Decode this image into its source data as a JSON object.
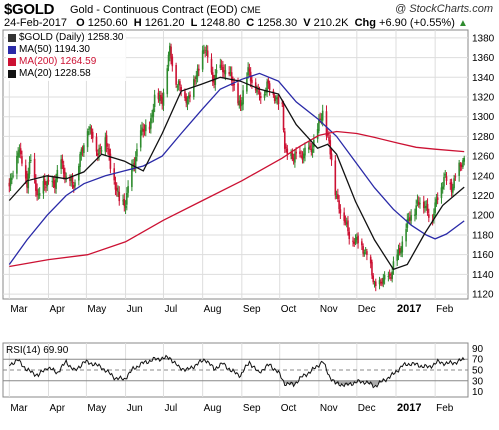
{
  "header": {
    "symbol": "$GOLD",
    "description": "Gold - Continuous Contract (EOD)",
    "exchange": "CME",
    "watermark": "@ StockCharts.com",
    "date": "24-Feb-2017",
    "open_label": "O",
    "open": "1250.60",
    "high_label": "H",
    "high": "1261.20",
    "low_label": "L",
    "low": "1248.80",
    "close_label": "C",
    "close": "1258.30",
    "volume_label": "V",
    "volume": "210.2K",
    "change_label": "Chg",
    "change": "+6.90 (+0.55%)",
    "change_arrow": "▲"
  },
  "legend": {
    "price": "$GOLD (Daily) 1258.30",
    "ma50": "MA(50) 1194.30",
    "ma200": "MA(200) 1264.59",
    "ma20": "MA(20) 1228.58"
  },
  "rsi_label": "RSI(14) 69.90",
  "colors": {
    "up": "#2e8b2e",
    "down": "#cc1133",
    "ma50": "#2a2aa8",
    "ma200": "#cc1133",
    "ma20": "#111111",
    "grid": "#dddddd",
    "rsi_fill": "#999999"
  },
  "chart_data": [
    {
      "type": "candlestick",
      "title": "$GOLD (Daily) 1258.30",
      "x_ticks": [
        "Mar",
        "Apr",
        "May",
        "Jun",
        "Jul",
        "Aug",
        "Sep",
        "Oct",
        "Nov",
        "Dec",
        "2017",
        "Feb"
      ],
      "x_tick_bold": "2017",
      "y_ticks": [
        1120,
        1140,
        1160,
        1180,
        1200,
        1220,
        1240,
        1260,
        1280,
        1300,
        1320,
        1340,
        1360,
        1380
      ],
      "ylim": [
        1115,
        1388
      ],
      "grid": true,
      "legend": "top-left",
      "close_points": [
        [
          "2016-03-01",
          1232
        ],
        [
          "2016-03-08",
          1264
        ],
        [
          "2016-03-11",
          1258
        ],
        [
          "2016-03-15",
          1232
        ],
        [
          "2016-03-18",
          1255
        ],
        [
          "2016-03-24",
          1219
        ],
        [
          "2016-03-31",
          1235
        ],
        [
          "2016-04-06",
          1229
        ],
        [
          "2016-04-11",
          1258
        ],
        [
          "2016-04-15",
          1234
        ],
        [
          "2016-04-22",
          1235
        ],
        [
          "2016-04-28",
          1267
        ],
        [
          "2016-05-02",
          1292
        ],
        [
          "2016-05-10",
          1265
        ],
        [
          "2016-05-16",
          1277
        ],
        [
          "2016-05-20",
          1252
        ],
        [
          "2016-05-27",
          1212
        ],
        [
          "2016-06-01",
          1215
        ],
        [
          "2016-06-06",
          1244
        ],
        [
          "2016-06-13",
          1283
        ],
        [
          "2016-06-20",
          1290
        ],
        [
          "2016-06-24",
          1318
        ],
        [
          "2016-06-30",
          1320
        ],
        [
          "2016-07-06",
          1366
        ],
        [
          "2016-07-12",
          1333
        ],
        [
          "2016-07-20",
          1318
        ],
        [
          "2016-07-27",
          1341
        ],
        [
          "2016-08-02",
          1370
        ],
        [
          "2016-08-09",
          1339
        ],
        [
          "2016-08-17",
          1350
        ],
        [
          "2016-08-23",
          1339
        ],
        [
          "2016-08-31",
          1311
        ],
        [
          "2016-09-06",
          1349
        ],
        [
          "2016-09-14",
          1321
        ],
        [
          "2016-09-21",
          1331
        ],
        [
          "2016-09-28",
          1321
        ],
        [
          "2016-10-03",
          1308
        ],
        [
          "2016-10-05",
          1268
        ],
        [
          "2016-10-12",
          1256
        ],
        [
          "2016-10-18",
          1262
        ],
        [
          "2016-10-25",
          1265
        ],
        [
          "2016-11-01",
          1290
        ],
        [
          "2016-11-04",
          1304
        ],
        [
          "2016-11-09",
          1274
        ],
        [
          "2016-11-10",
          1264
        ],
        [
          "2016-11-14",
          1224
        ],
        [
          "2016-11-18",
          1207
        ],
        [
          "2016-11-24",
          1183
        ],
        [
          "2016-11-30",
          1173
        ],
        [
          "2016-12-05",
          1170
        ],
        [
          "2016-12-09",
          1161
        ],
        [
          "2016-12-15",
          1129
        ],
        [
          "2016-12-21",
          1131
        ],
        [
          "2016-12-28",
          1141
        ],
        [
          "2017-01-03",
          1161
        ],
        [
          "2017-01-09",
          1186
        ],
        [
          "2017-01-13",
          1200
        ],
        [
          "2017-01-18",
          1212
        ],
        [
          "2017-01-24",
          1211
        ],
        [
          "2017-01-30",
          1195
        ],
        [
          "2017-02-03",
          1221
        ],
        [
          "2017-02-08",
          1236
        ],
        [
          "2017-02-14",
          1230
        ],
        [
          "2017-02-17",
          1238
        ],
        [
          "2017-02-24",
          1258.3
        ]
      ],
      "series": [
        {
          "name": "MA(50)",
          "points": [
            [
              "2016-03-01",
              1150
            ],
            [
              "2016-03-15",
              1175
            ],
            [
              "2016-03-31",
              1200
            ],
            [
              "2016-04-15",
              1220
            ],
            [
              "2016-04-29",
              1232
            ],
            [
              "2016-05-16",
              1240
            ],
            [
              "2016-05-31",
              1245
            ],
            [
              "2016-06-15",
              1250
            ],
            [
              "2016-06-30",
              1260
            ],
            [
              "2016-07-15",
              1283
            ],
            [
              "2016-08-01",
              1308
            ],
            [
              "2016-08-15",
              1328
            ],
            [
              "2016-09-01",
              1338
            ],
            [
              "2016-09-15",
              1344
            ],
            [
              "2016-09-30",
              1336
            ],
            [
              "2016-10-14",
              1315
            ],
            [
              "2016-10-31",
              1298
            ],
            [
              "2016-11-15",
              1280
            ],
            [
              "2016-11-30",
              1254
            ],
            [
              "2016-12-15",
              1228
            ],
            [
              "2016-12-30",
              1206
            ],
            [
              "2017-01-13",
              1190
            ],
            [
              "2017-01-25",
              1180
            ],
            [
              "2017-02-01",
              1176
            ],
            [
              "2017-02-10",
              1181
            ],
            [
              "2017-02-24",
              1194.3
            ]
          ]
        },
        {
          "name": "MA(200)",
          "points": [
            [
              "2016-03-01",
              1148
            ],
            [
              "2016-04-01",
              1155
            ],
            [
              "2016-05-02",
              1160
            ],
            [
              "2016-06-01",
              1173
            ],
            [
              "2016-07-01",
              1195
            ],
            [
              "2016-08-01",
              1215
            ],
            [
              "2016-09-01",
              1235
            ],
            [
              "2016-10-03",
              1258
            ],
            [
              "2016-10-17",
              1270
            ],
            [
              "2016-11-01",
              1281
            ],
            [
              "2016-11-15",
              1285
            ],
            [
              "2016-12-01",
              1283
            ],
            [
              "2016-12-15",
              1279
            ],
            [
              "2017-01-03",
              1273
            ],
            [
              "2017-01-17",
              1269
            ],
            [
              "2017-02-01",
              1267
            ],
            [
              "2017-02-24",
              1264.59
            ]
          ]
        },
        {
          "name": "MA(20)",
          "points": [
            [
              "2016-03-01",
              1215
            ],
            [
              "2016-03-15",
              1235
            ],
            [
              "2016-03-31",
              1240
            ],
            [
              "2016-04-15",
              1237
            ],
            [
              "2016-04-29",
              1244
            ],
            [
              "2016-05-13",
              1262
            ],
            [
              "2016-05-31",
              1255
            ],
            [
              "2016-06-15",
              1245
            ],
            [
              "2016-06-30",
              1283
            ],
            [
              "2016-07-15",
              1326
            ],
            [
              "2016-07-31",
              1333
            ],
            [
              "2016-08-15",
              1340
            ],
            [
              "2016-08-31",
              1336
            ],
            [
              "2016-09-15",
              1328
            ],
            [
              "2016-09-30",
              1323
            ],
            [
              "2016-10-14",
              1292
            ],
            [
              "2016-10-31",
              1268
            ],
            [
              "2016-11-08",
              1272
            ],
            [
              "2016-11-15",
              1262
            ],
            [
              "2016-11-30",
              1214
            ],
            [
              "2016-12-15",
              1175
            ],
            [
              "2016-12-30",
              1145
            ],
            [
              "2017-01-10",
              1150
            ],
            [
              "2017-01-24",
              1182
            ],
            [
              "2017-02-07",
              1210
            ],
            [
              "2017-02-24",
              1228.58
            ]
          ]
        }
      ]
    },
    {
      "type": "line",
      "title": "RSI(14) 69.90",
      "x_ticks": [
        "Mar",
        "Apr",
        "May",
        "Jun",
        "Jul",
        "Aug",
        "Sep",
        "Oct",
        "Nov",
        "Dec",
        "2017",
        "Feb"
      ],
      "y_ticks": [
        10,
        30,
        50,
        70,
        90
      ],
      "ylim": [
        0,
        100
      ],
      "reference_lines": [
        30,
        50,
        70
      ],
      "series": [
        {
          "name": "RSI(14)",
          "points": [
            [
              "2016-03-01",
              60
            ],
            [
              "2016-03-08",
              68
            ],
            [
              "2016-03-15",
              50
            ],
            [
              "2016-03-24",
              40
            ],
            [
              "2016-03-31",
              55
            ],
            [
              "2016-04-08",
              45
            ],
            [
              "2016-04-15",
              65
            ],
            [
              "2016-04-22",
              48
            ],
            [
              "2016-04-29",
              65
            ],
            [
              "2016-05-06",
              62
            ],
            [
              "2016-05-13",
              55
            ],
            [
              "2016-05-24",
              35
            ],
            [
              "2016-05-31",
              33
            ],
            [
              "2016-06-07",
              52
            ],
            [
              "2016-06-14",
              62
            ],
            [
              "2016-06-24",
              70
            ],
            [
              "2016-07-06",
              73
            ],
            [
              "2016-07-13",
              55
            ],
            [
              "2016-07-20",
              50
            ],
            [
              "2016-07-27",
              60
            ],
            [
              "2016-08-03",
              70
            ],
            [
              "2016-08-10",
              52
            ],
            [
              "2016-08-17",
              62
            ],
            [
              "2016-08-24",
              48
            ],
            [
              "2016-08-31",
              40
            ],
            [
              "2016-09-07",
              65
            ],
            [
              "2016-09-14",
              45
            ],
            [
              "2016-09-23",
              60
            ],
            [
              "2016-09-30",
              45
            ],
            [
              "2016-10-05",
              25
            ],
            [
              "2016-10-12",
              23
            ],
            [
              "2016-10-19",
              38
            ],
            [
              "2016-10-26",
              48
            ],
            [
              "2016-11-04",
              66
            ],
            [
              "2016-11-09",
              40
            ],
            [
              "2016-11-14",
              25
            ],
            [
              "2016-11-23",
              22
            ],
            [
              "2016-12-01",
              28
            ],
            [
              "2016-12-08",
              28
            ],
            [
              "2016-12-15",
              20
            ],
            [
              "2016-12-22",
              30
            ],
            [
              "2016-12-30",
              42
            ],
            [
              "2017-01-06",
              58
            ],
            [
              "2017-01-13",
              62
            ],
            [
              "2017-01-20",
              58
            ],
            [
              "2017-01-27",
              55
            ],
            [
              "2017-02-03",
              65
            ],
            [
              "2017-02-10",
              62
            ],
            [
              "2017-02-17",
              64
            ],
            [
              "2017-02-24",
              69.9
            ]
          ]
        }
      ]
    }
  ]
}
